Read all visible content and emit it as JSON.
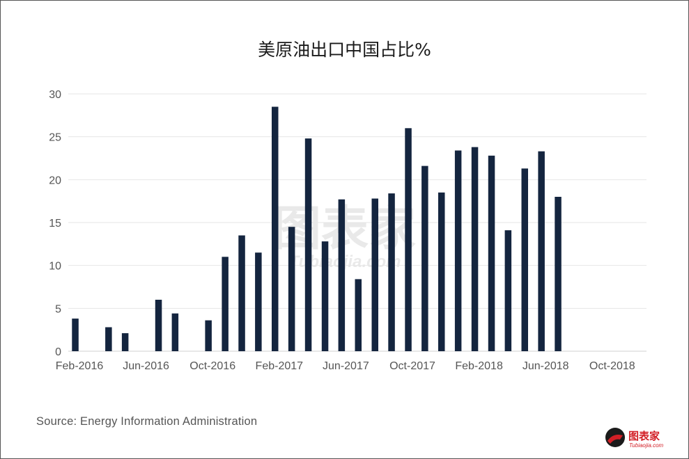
{
  "chart_data": {
    "type": "bar",
    "title": "美原油出口中国占比%",
    "xlabel": "",
    "ylabel": "",
    "ylim": [
      0,
      30
    ],
    "yticks": [
      0,
      5,
      10,
      15,
      20,
      25,
      30
    ],
    "xticks": [
      "Feb-2016",
      "Jun-2016",
      "Oct-2016",
      "Feb-2017",
      "Jun-2017",
      "Oct-2017",
      "Feb-2018",
      "Jun-2018",
      "Oct-2018"
    ],
    "grid": true,
    "bar_color": "#14253f",
    "categories": [
      "Feb-2016",
      "Mar-2016",
      "Apr-2016",
      "May-2016",
      "Jun-2016",
      "Jul-2016",
      "Aug-2016",
      "Sep-2016",
      "Oct-2016",
      "Nov-2016",
      "Dec-2016",
      "Jan-2017",
      "Feb-2017",
      "Mar-2017",
      "Apr-2017",
      "May-2017",
      "Jun-2017",
      "Jul-2017",
      "Aug-2017",
      "Sep-2017",
      "Oct-2017",
      "Nov-2017",
      "Dec-2017",
      "Jan-2018",
      "Feb-2018",
      "Mar-2018",
      "Apr-2018",
      "May-2018",
      "Jun-2018",
      "Jul-2018",
      "Aug-2018",
      "Sep-2018",
      "Oct-2018",
      "Nov-2018"
    ],
    "values": [
      3.8,
      null,
      2.8,
      2.1,
      null,
      6.0,
      4.4,
      null,
      3.6,
      11.0,
      13.5,
      11.5,
      28.5,
      14.5,
      24.8,
      12.8,
      17.7,
      8.4,
      17.8,
      18.4,
      26.0,
      21.6,
      18.5,
      23.4,
      23.8,
      22.8,
      14.1,
      21.3,
      23.3,
      18.0,
      null,
      null,
      null,
      null
    ]
  },
  "source": "Source: Energy Information Administration",
  "watermark": {
    "text": "图表家",
    "subtext": "Tubiaojia.com"
  },
  "logo": {
    "text": "图表家",
    "subtext": "Tubiaojia.com"
  }
}
